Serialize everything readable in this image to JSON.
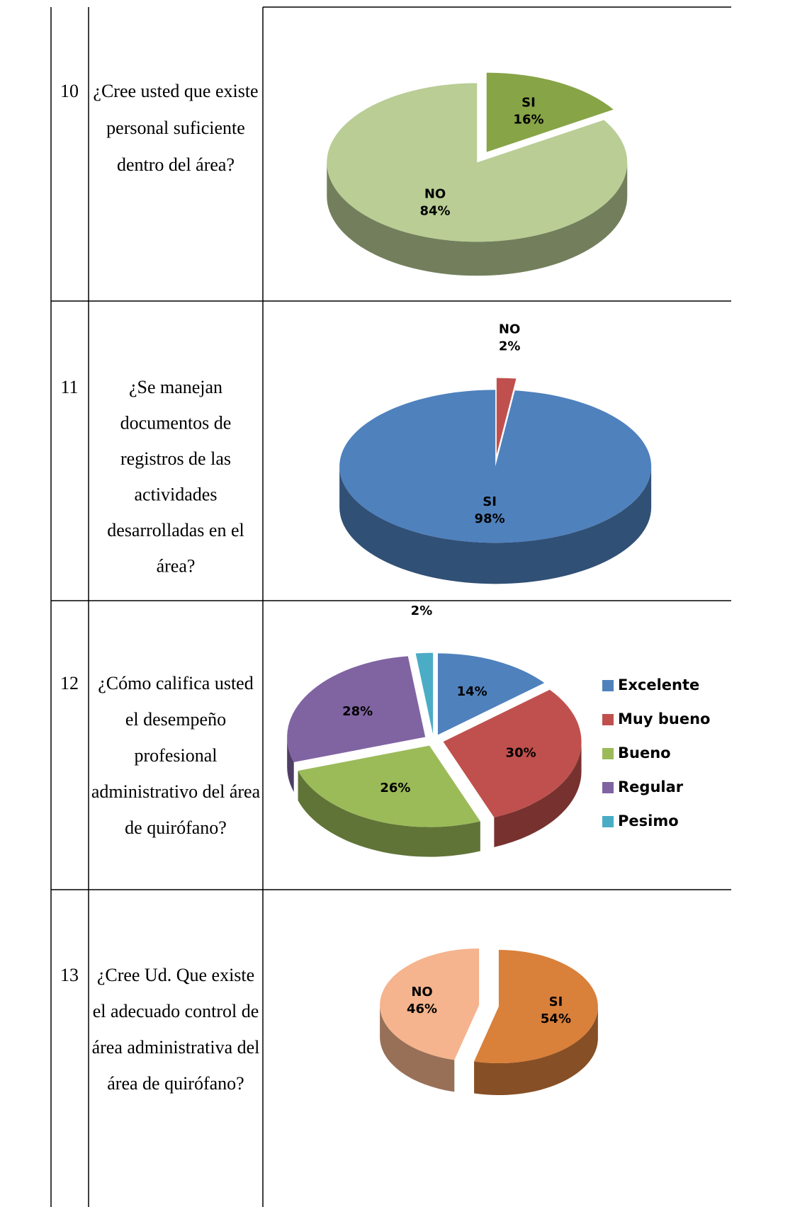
{
  "table": {
    "rows": [
      {
        "number": "10",
        "question": [
          "¿Cree usted que existe",
          "personal  suficiente",
          "dentro del área?"
        ],
        "chart": {
          "type": "pie",
          "categories": [
            "SI",
            "NO"
          ],
          "values": [
            16,
            84
          ],
          "value_labels": [
            "16%",
            "84%"
          ],
          "colors": [
            "#87a447",
            "#b9cd95"
          ],
          "explode": true
        }
      },
      {
        "number": "11",
        "question": [
          "¿Se manejan",
          "documentos de",
          "registros de las",
          "actividades",
          "desarrolladas en el",
          "área?"
        ],
        "chart": {
          "type": "pie",
          "categories": [
            "NO",
            "SI"
          ],
          "values": [
            2,
            98
          ],
          "value_labels": [
            "2%",
            "98%"
          ],
          "colors": [
            "#c0504d",
            "#4f81bd"
          ],
          "explode": true
        }
      },
      {
        "number": "12",
        "question": [
          "¿Cómo califica usted",
          "el desempeño",
          "profesional",
          "administrativo del área",
          "de quirófano?"
        ],
        "chart": {
          "type": "pie",
          "categories": [
            "Excelente",
            "Muy bueno",
            "Bueno",
            "Regular",
            "Pesimo"
          ],
          "values": [
            14,
            30,
            26,
            28,
            2
          ],
          "value_labels": [
            "14%",
            "30%",
            "26%",
            "28%",
            "2%"
          ],
          "colors": [
            "#4f81bd",
            "#c0504d",
            "#9bbb59",
            "#8064a2",
            "#4bacc6"
          ],
          "explode": true,
          "legend": "right"
        }
      },
      {
        "number": "13",
        "question": [
          "¿Cree Ud. Que existe",
          "el adecuado control de",
          "área administrativa del",
          "área de quirófano?"
        ],
        "chart": {
          "type": "pie",
          "categories": [
            "SI",
            "NO"
          ],
          "values": [
            54,
            46
          ],
          "value_labels": [
            "54%",
            "46%"
          ],
          "colors": [
            "#d9803b",
            "#f5b48e"
          ],
          "explode": true
        }
      }
    ]
  }
}
